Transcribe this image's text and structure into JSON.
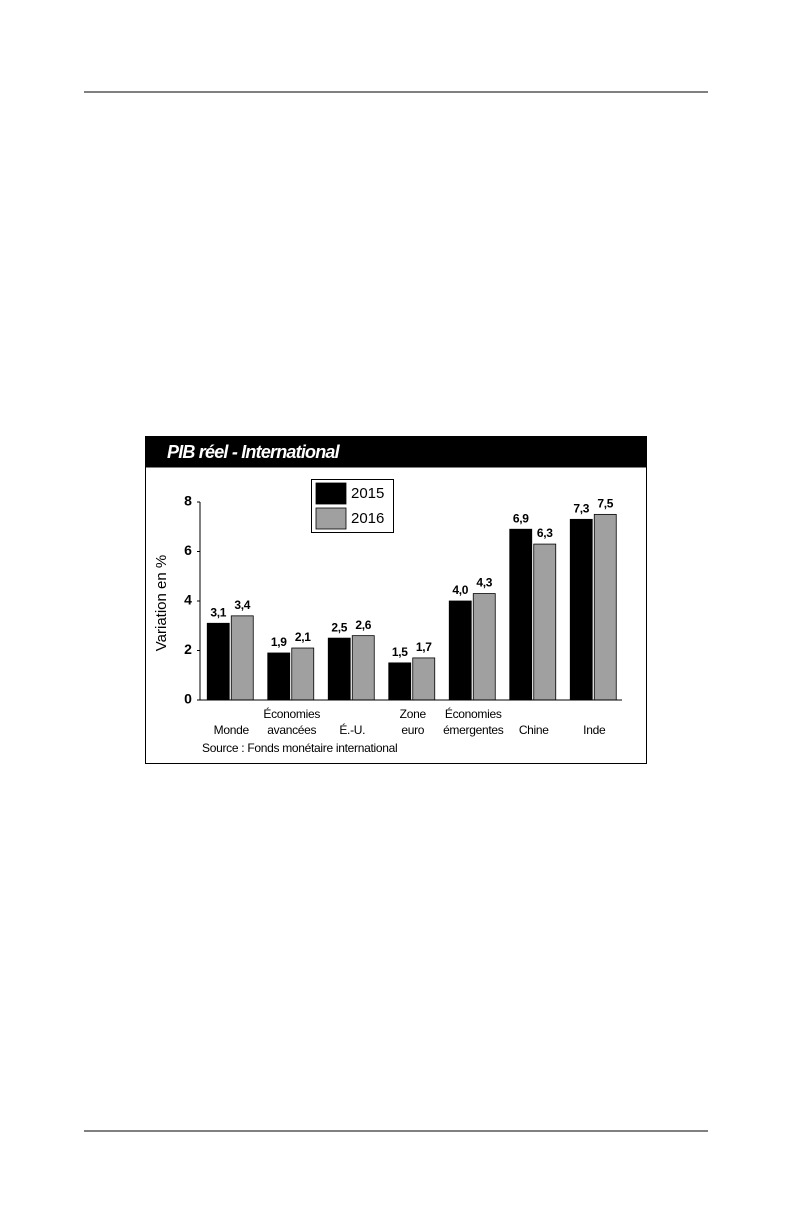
{
  "chart_data": {
    "type": "bar",
    "title": "PIB réel - International",
    "y_label": "Variation en %",
    "source": "Source : Fonds monétaire international",
    "categories": [
      "Monde",
      "Économies\navancées",
      "É.-U.",
      "Zone\neuro",
      "Économies\némergentes",
      "Chine",
      "Inde"
    ],
    "series": [
      {
        "name": "2015",
        "color": "#000000",
        "values": [
          3.1,
          1.9,
          2.5,
          1.5,
          4.0,
          6.9,
          7.3
        ],
        "value_labels": [
          "3,1",
          "1,9",
          "2,5",
          "1,5",
          "4,0",
          "6,9",
          "7,3"
        ]
      },
      {
        "name": "2016",
        "color": "#a0a0a0",
        "values": [
          3.4,
          2.1,
          2.6,
          1.7,
          4.3,
          6.3,
          7.5
        ],
        "value_labels": [
          "3,4",
          "2,1",
          "2,6",
          "1,7",
          "4,3",
          "6,3",
          "7,5"
        ]
      }
    ],
    "ylim": [
      0,
      8
    ],
    "yticks": [
      0,
      2,
      4,
      6,
      8
    ],
    "legend": "top"
  }
}
